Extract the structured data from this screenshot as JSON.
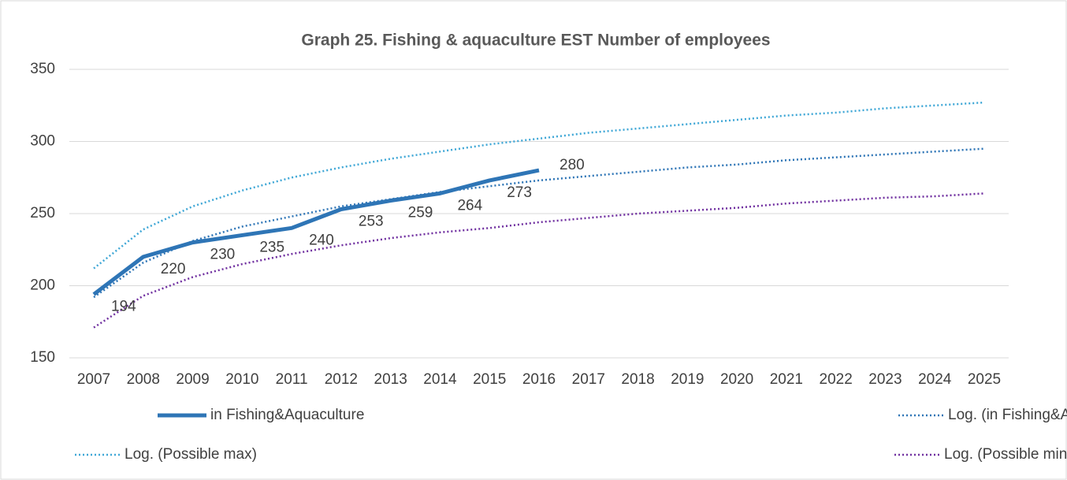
{
  "chart_data": {
    "type": "line",
    "title": "Graph 25. Fishing & aquaculture EST Number of employees",
    "categories": [
      "2007",
      "2008",
      "2009",
      "2010",
      "2011",
      "2012",
      "2013",
      "2014",
      "2015",
      "2016",
      "2017",
      "2018",
      "2019",
      "2020",
      "2021",
      "2022",
      "2023",
      "2024",
      "2025"
    ],
    "ylim": [
      150,
      350
    ],
    "yticks": [
      150,
      200,
      250,
      300,
      350
    ],
    "grid": true,
    "legend": "bottom",
    "series": [
      {
        "name": "in Fishing&Aquaculture",
        "color": "#2e75b6",
        "style": "solid",
        "data_labels": true,
        "values": [
          194,
          220,
          230,
          235,
          240,
          253,
          259,
          264,
          273,
          280,
          null,
          null,
          null,
          null,
          null,
          null,
          null,
          null,
          null
        ]
      },
      {
        "name": "Log. (in Fishing&Aquaculture)",
        "color": "#2e75b6",
        "style": "dotted",
        "values": [
          192,
          216,
          231,
          241,
          248,
          255,
          260,
          265,
          269,
          273,
          276,
          279,
          282,
          284,
          287,
          289,
          291,
          293,
          295
        ]
      },
      {
        "name": "Log. (Possible max)",
        "color": "#3fa7d6",
        "style": "dotted",
        "values": [
          212,
          239,
          255,
          266,
          275,
          282,
          288,
          293,
          298,
          302,
          306,
          309,
          312,
          315,
          318,
          320,
          323,
          325,
          327
        ]
      },
      {
        "name": "Log. (Possible min)",
        "color": "#7030a0",
        "style": "dotted",
        "values": [
          171,
          193,
          206,
          215,
          222,
          228,
          233,
          237,
          240,
          244,
          247,
          250,
          252,
          254,
          257,
          259,
          261,
          262,
          264
        ]
      }
    ]
  }
}
